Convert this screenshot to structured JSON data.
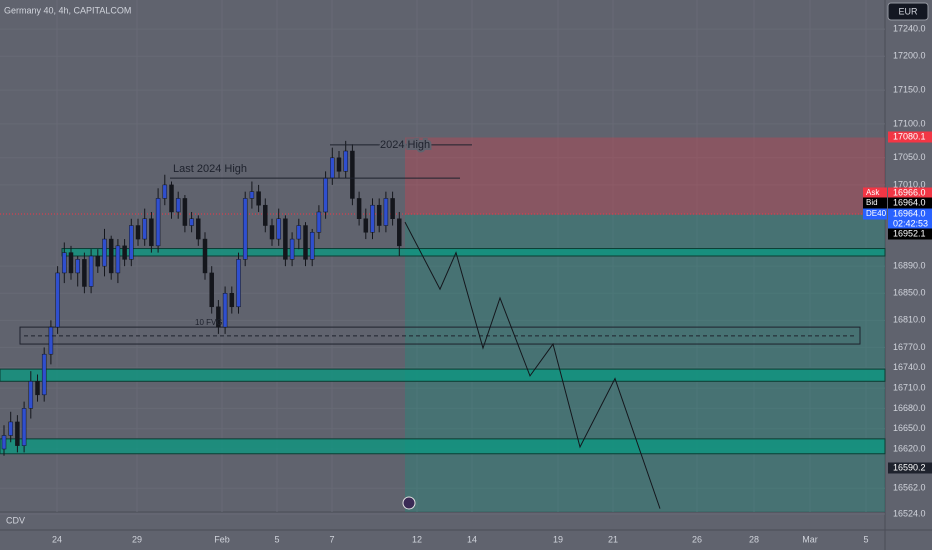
{
  "chart_data": {
    "type": "candlestick",
    "title": "Germany 40, 4h, CAPITALCOM",
    "currency": "EUR",
    "indicator": "CDV",
    "bull_color": "#2f4fcf",
    "bear_color": "#14161c",
    "ylim": [
      16527,
      17283
    ],
    "yticks": [
      {
        "value": 17240,
        "label": "17240.0"
      },
      {
        "value": 17200,
        "label": "17200.0"
      },
      {
        "value": 17150,
        "label": "17150.0"
      },
      {
        "value": 17100,
        "label": "17100.0"
      },
      {
        "value": 17050,
        "label": "17050.0"
      },
      {
        "value": 17010,
        "label": "17010.0"
      },
      {
        "value": 16890,
        "label": "16890.0"
      },
      {
        "value": 16850,
        "label": "16850.0"
      },
      {
        "value": 16810,
        "label": "16810.0"
      },
      {
        "value": 16770,
        "label": "16770.0"
      },
      {
        "value": 16740,
        "label": "16740.0"
      },
      {
        "value": 16710,
        "label": "16710.0"
      },
      {
        "value": 16680,
        "label": "16680.0"
      },
      {
        "value": 16650,
        "label": "16650.0"
      },
      {
        "value": 16620,
        "label": "16620.0"
      },
      {
        "value": 16562,
        "label": "16562.0"
      },
      {
        "value": 16524,
        "label": "16524.0"
      }
    ],
    "x_labels": [
      "24",
      "29",
      "Feb",
      "5",
      "7",
      "12",
      "14",
      "19",
      "21",
      "26",
      "28",
      "Mar",
      "5"
    ],
    "open": [
      16620,
      16640,
      16660,
      16625,
      16680,
      16720,
      16700,
      16760,
      16800,
      16880,
      16910,
      16880,
      16900,
      16860,
      16905,
      16890,
      16930,
      16880,
      16920,
      16900,
      16950,
      16930,
      16960,
      16920,
      16990,
      17010,
      16970,
      16990,
      16950,
      16960,
      16930,
      16880,
      16830,
      16800,
      16850,
      16830,
      16900,
      16990,
      17000,
      16980,
      16950,
      16930,
      16960,
      16900,
      16930,
      16950,
      16900,
      16940,
      16970,
      17020,
      17050,
      17030,
      17060,
      16990,
      16960,
      16940,
      16980,
      16950,
      16990,
      16960
    ],
    "high": [
      16655,
      16675,
      16670,
      16690,
      16735,
      16730,
      16770,
      16810,
      16890,
      16925,
      16920,
      16905,
      16910,
      16915,
      16915,
      16945,
      16935,
      16930,
      16930,
      16960,
      16960,
      16975,
      16970,
      17005,
      17025,
      17015,
      17000,
      16995,
      16970,
      16965,
      16940,
      16890,
      16840,
      16860,
      16860,
      16910,
      17000,
      17015,
      17010,
      16990,
      16960,
      16975,
      16965,
      16940,
      16960,
      16955,
      16945,
      16980,
      17030,
      17065,
      17060,
      17075,
      17070,
      17000,
      16975,
      16990,
      16990,
      17000,
      17000,
      16970
    ],
    "low": [
      16610,
      16630,
      16615,
      16615,
      16665,
      16690,
      16690,
      16745,
      16790,
      16865,
      16870,
      16860,
      16850,
      16850,
      16880,
      16875,
      16870,
      16865,
      16890,
      16890,
      16920,
      16920,
      16910,
      16910,
      16980,
      16960,
      16960,
      16940,
      16940,
      16920,
      16870,
      16820,
      16790,
      16790,
      16820,
      16820,
      16890,
      16975,
      16970,
      16940,
      16920,
      16920,
      16890,
      16890,
      16915,
      16890,
      16890,
      16930,
      16960,
      17010,
      17020,
      17020,
      16980,
      16950,
      16930,
      16930,
      16940,
      16940,
      16950,
      16905
    ],
    "close": [
      16640,
      16660,
      16625,
      16680,
      16720,
      16700,
      16760,
      16800,
      16880,
      16910,
      16880,
      16900,
      16860,
      16905,
      16890,
      16930,
      16880,
      16920,
      16900,
      16950,
      16930,
      16960,
      16920,
      16990,
      17010,
      16970,
      16990,
      16950,
      16960,
      16930,
      16880,
      16830,
      16800,
      16850,
      16830,
      16900,
      16990,
      17000,
      16980,
      16950,
      16930,
      16960,
      16900,
      16930,
      16950,
      16900,
      16940,
      16970,
      17020,
      17050,
      17030,
      17060,
      16990,
      16960,
      16940,
      16980,
      16950,
      16990,
      16960,
      16920
    ],
    "stop_zone": [
      16966,
      17080
    ],
    "target_zone": [
      16527,
      16966
    ],
    "supply_demand_zones": [
      [
        16905,
        16916
      ],
      [
        16720,
        16738
      ],
      [
        16613,
        16635
      ]
    ],
    "fvg_box": [
      16775,
      16800
    ],
    "fvg_mid": 16787,
    "fvg_label": "10 FVG",
    "high_2024": {
      "label": "2024 High",
      "level": 17069
    },
    "last_high_2024": {
      "label": "Last 2024 High",
      "level": 17020
    },
    "current_level": 16967,
    "projection": [
      16955,
      16856,
      16910,
      16769,
      16843,
      16728,
      16775,
      16623,
      16724,
      16532
    ],
    "price_badges": [
      {
        "tag": "",
        "price": "17080.1"
      },
      {
        "tag": "Ask",
        "price": "16966.0"
      },
      {
        "tag": "Bid",
        "price": "16964.0"
      },
      {
        "tag": "DE40",
        "price": "16964.0"
      },
      {
        "tag": "",
        "price": "02:42:53"
      },
      {
        "tag": "",
        "price": "16952.1"
      },
      {
        "tag": "",
        "price": "16590.2"
      }
    ]
  }
}
